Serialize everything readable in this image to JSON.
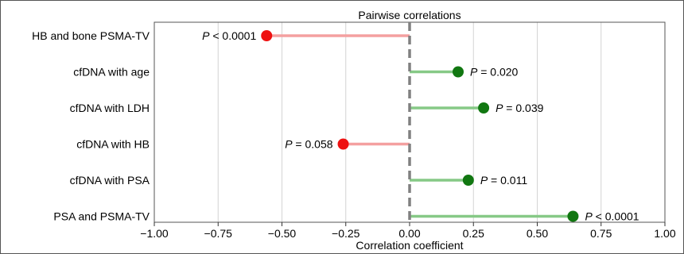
{
  "chart_data": {
    "type": "lollipop",
    "title": "Pairwise correlations",
    "xlabel": "Correlation coefficient",
    "xlim": [
      -1.0,
      1.0
    ],
    "xticks": [
      "−1.00",
      "−0.75",
      "−0.50",
      "−0.25",
      "0.00",
      "0.25",
      "0.50",
      "0.75",
      "1.00"
    ],
    "xtick_values": [
      -1.0,
      -0.75,
      -0.5,
      -0.25,
      0.0,
      0.25,
      0.5,
      0.75,
      1.0
    ],
    "grid": "vertical",
    "reference_line": 0.0,
    "items": [
      {
        "label": "HB and bone PSMA-TV",
        "value": -0.56,
        "p_prefix": "P",
        "p_text": " < 0.0001",
        "color": "#ee1111"
      },
      {
        "label": "cfDNA with age",
        "value": 0.19,
        "p_prefix": "P",
        "p_text": " = 0.020",
        "color": "#117711"
      },
      {
        "label": "cfDNA with LDH",
        "value": 0.29,
        "p_prefix": "P",
        "p_text": " = 0.039",
        "color": "#117711"
      },
      {
        "label": "cfDNA with HB",
        "value": -0.26,
        "p_prefix": "P",
        "p_text": " = 0.058",
        "color": "#ee1111"
      },
      {
        "label": "cfDNA with PSA",
        "value": 0.23,
        "p_prefix": "P",
        "p_text": " = 0.011",
        "color": "#117711"
      },
      {
        "label": "PSA and PSMA-TV",
        "value": 0.64,
        "p_prefix": "P",
        "p_text": " < 0.0001",
        "color": "#117711"
      }
    ],
    "colors": {
      "negative_stem": "#f4a0a0",
      "positive_stem": "#86c986",
      "grid": "#d4d4d4",
      "zero_line": "#808080"
    }
  }
}
